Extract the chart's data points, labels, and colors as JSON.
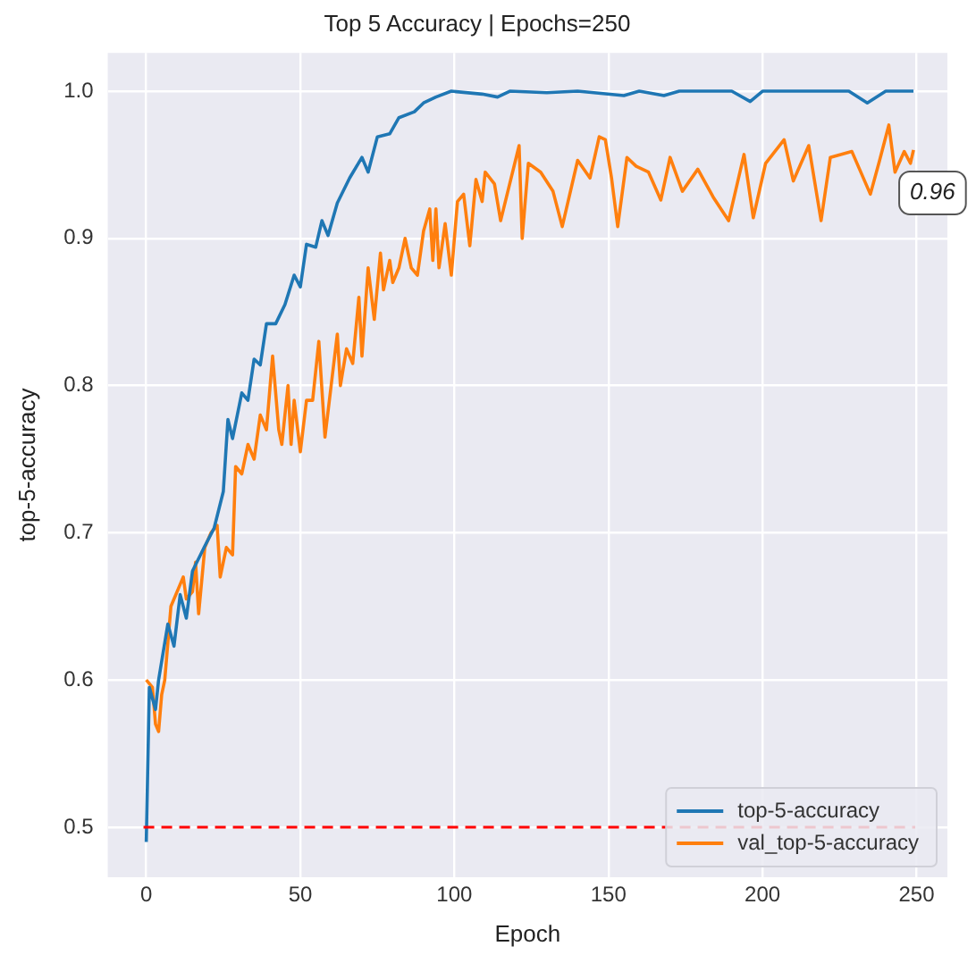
{
  "chart_data": {
    "type": "line",
    "title": "Top 5 Accuracy | Epochs=250",
    "xlabel": "Epoch",
    "ylabel": "top-5-accuracy",
    "xlim": [
      -12.5,
      260
    ],
    "xticks": [
      0,
      50,
      100,
      150,
      200,
      250
    ],
    "ylim": [
      0.466,
      1.026
    ],
    "yticks": [
      0.5,
      0.6,
      0.7,
      0.8,
      0.9,
      {
        "value": 1.0,
        "label": "1.0"
      }
    ],
    "grid": true,
    "legend": "bottom right",
    "line_style": "solid",
    "marker": "none",
    "series": [
      {
        "name": "top-5-accuracy",
        "color": "#1f77b4",
        "x": [
          0,
          1,
          3,
          4,
          7,
          9,
          11,
          13,
          15,
          19,
          22,
          25,
          26.5,
          28,
          31,
          33,
          35,
          37,
          39,
          42,
          45,
          48,
          50,
          52,
          55,
          57,
          59,
          62,
          66,
          70,
          72,
          75,
          79,
          82,
          87,
          90,
          94,
          99,
          109,
          114,
          118,
          130,
          140,
          155,
          160,
          168,
          173,
          180,
          190,
          196,
          200,
          215,
          228,
          234,
          240,
          249
        ],
        "values": [
          0.49,
          0.595,
          0.58,
          0.6,
          0.638,
          0.623,
          0.658,
          0.642,
          0.674,
          0.691,
          0.703,
          0.728,
          0.777,
          0.764,
          0.795,
          0.79,
          0.818,
          0.814,
          0.842,
          0.842,
          0.855,
          0.875,
          0.867,
          0.896,
          0.894,
          0.912,
          0.902,
          0.924,
          0.941,
          0.955,
          0.945,
          0.969,
          0.971,
          0.982,
          0.986,
          0.992,
          0.996,
          1.0,
          0.998,
          0.996,
          1.0,
          0.999,
          1.0,
          0.997,
          1.0,
          0.997,
          1.0,
          1.0,
          1.0,
          0.993,
          1.0,
          1.0,
          1.0,
          0.992,
          1.0,
          1.0
        ]
      },
      {
        "name": "val_top-5-accuracy",
        "color": "#ff7f0e",
        "x": [
          0,
          2,
          3,
          4,
          5,
          6,
          8,
          11,
          12,
          13,
          15,
          16,
          17,
          19,
          21,
          23,
          24,
          26,
          28,
          29,
          31,
          33,
          35,
          37,
          39,
          40,
          41,
          43,
          44,
          46,
          47,
          48,
          50,
          52,
          54,
          56,
          58,
          60,
          62,
          63,
          65,
          67,
          69,
          70,
          72,
          74,
          76,
          77,
          79,
          80,
          82,
          84,
          86,
          88,
          90,
          92,
          93,
          94,
          95,
          97,
          99,
          101,
          103,
          105,
          107,
          109,
          110,
          113,
          115,
          121,
          122,
          124,
          128,
          132,
          135,
          140,
          144,
          147,
          149,
          151,
          153,
          156,
          159,
          163,
          167,
          170,
          174,
          179,
          184,
          189,
          194,
          197,
          201,
          207,
          210,
          215,
          219,
          222,
          229,
          235,
          238,
          241,
          243,
          246,
          248,
          249
        ],
        "values": [
          0.6,
          0.595,
          0.57,
          0.565,
          0.59,
          0.6,
          0.65,
          0.665,
          0.67,
          0.655,
          0.66,
          0.68,
          0.645,
          0.69,
          0.7,
          0.705,
          0.67,
          0.69,
          0.685,
          0.745,
          0.74,
          0.76,
          0.75,
          0.78,
          0.77,
          0.795,
          0.82,
          0.77,
          0.76,
          0.8,
          0.76,
          0.79,
          0.755,
          0.79,
          0.79,
          0.83,
          0.765,
          0.8,
          0.835,
          0.8,
          0.825,
          0.815,
          0.86,
          0.82,
          0.88,
          0.845,
          0.89,
          0.865,
          0.885,
          0.87,
          0.88,
          0.9,
          0.88,
          0.875,
          0.905,
          0.92,
          0.885,
          0.92,
          0.88,
          0.91,
          0.875,
          0.925,
          0.93,
          0.895,
          0.94,
          0.925,
          0.945,
          0.937,
          0.912,
          0.963,
          0.9,
          0.951,
          0.945,
          0.932,
          0.908,
          0.953,
          0.941,
          0.969,
          0.967,
          0.941,
          0.908,
          0.955,
          0.949,
          0.945,
          0.926,
          0.955,
          0.932,
          0.947,
          0.928,
          0.912,
          0.957,
          0.914,
          0.951,
          0.967,
          0.939,
          0.963,
          0.912,
          0.955,
          0.959,
          0.93,
          0.953,
          0.977,
          0.945,
          0.959,
          0.951,
          0.96
        ]
      }
    ],
    "ref_lines": [
      {
        "axis": "y",
        "value": 0.5,
        "color": "#ff0000",
        "line_style": "dashed"
      }
    ],
    "annotations": [
      {
        "text": "0.96",
        "x": 249,
        "y": 0.96
      }
    ]
  }
}
